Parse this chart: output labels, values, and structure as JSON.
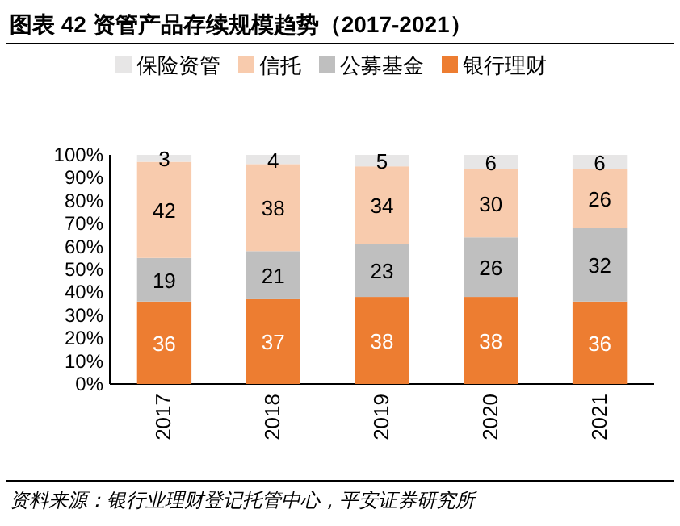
{
  "chart_data": {
    "type": "bar",
    "stacked": true,
    "title": "图表 42 资管产品存续规模趋势（2017-2021）",
    "categories": [
      "2017",
      "2018",
      "2019",
      "2020",
      "2021"
    ],
    "series": [
      {
        "name": "银行理财",
        "color": "#ed7d31",
        "values": [
          36,
          37,
          38,
          38,
          36
        ]
      },
      {
        "name": "公募基金",
        "color": "#bfbfbf",
        "values": [
          19,
          21,
          23,
          26,
          32
        ]
      },
      {
        "name": "信托",
        "color": "#f8cbad",
        "values": [
          42,
          38,
          34,
          30,
          26
        ]
      },
      {
        "name": "保险资管",
        "color": "#e7e6e6",
        "values": [
          3,
          4,
          5,
          6,
          6
        ]
      }
    ],
    "ylim": [
      0,
      100
    ],
    "yticks": [
      {
        "value": 0,
        "label": "0%"
      },
      {
        "value": 10,
        "label": "10%"
      },
      {
        "value": 20,
        "label": "20%"
      },
      {
        "value": 30,
        "label": "30%"
      },
      {
        "value": 40,
        "label": "40%"
      },
      {
        "value": 50,
        "label": "50%"
      },
      {
        "value": 60,
        "label": "60%"
      },
      {
        "value": 70,
        "label": "70%"
      },
      {
        "value": 80,
        "label": "80%"
      },
      {
        "value": 90,
        "label": "90%"
      },
      {
        "value": 100,
        "label": "100%"
      }
    ],
    "data_labels": true,
    "grid": false,
    "legend": "top",
    "annotations": [
      "资料来源：银行业理财登记托管中心，平安证券研究所"
    ]
  }
}
